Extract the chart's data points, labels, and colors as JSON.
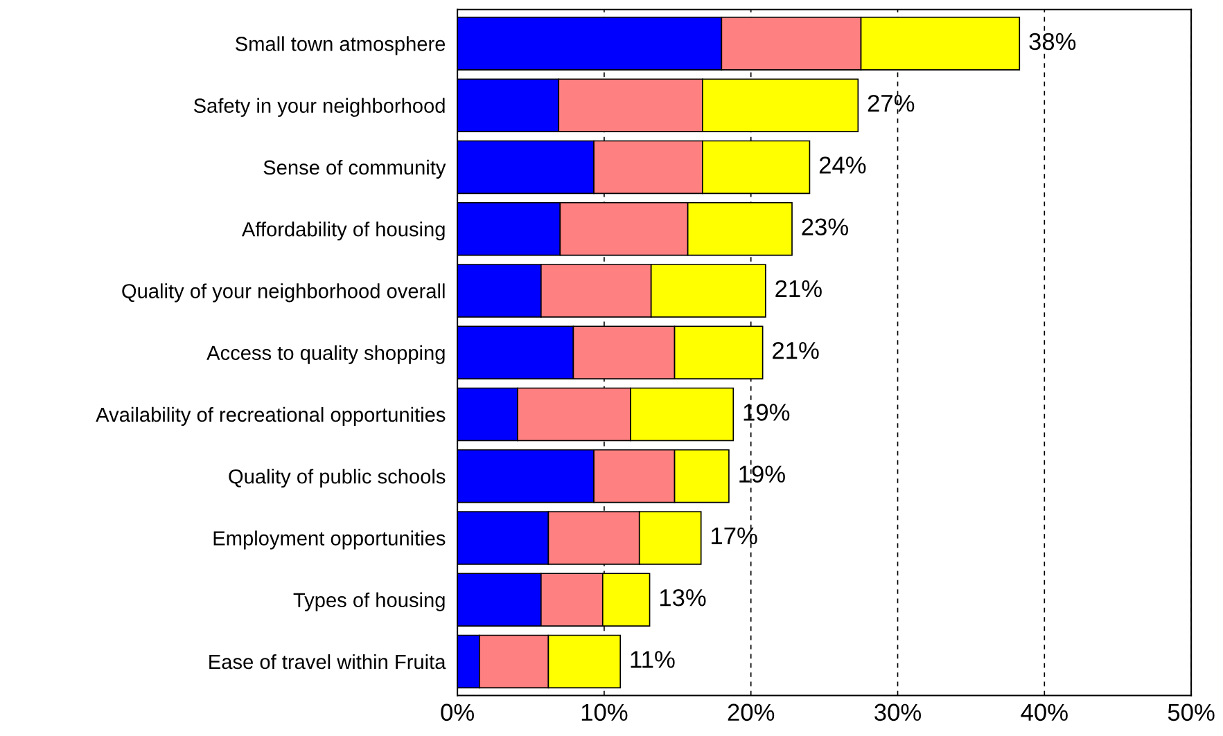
{
  "chart_data": {
    "type": "bar",
    "orientation": "horizontal",
    "stacked": true,
    "categories": [
      "Small town atmosphere",
      "Safety in your neighborhood",
      "Sense of community",
      "Affordability of housing",
      "Quality of your neighborhood overall",
      "Access to quality shopping",
      "Availability of recreational opportunities",
      "Quality of public schools",
      "Employment opportunities",
      "Types of housing",
      "Ease of travel within Fruita"
    ],
    "series": [
      {
        "color": "#0000ff",
        "values": [
          18.0,
          6.9,
          9.3,
          7.0,
          5.7,
          7.9,
          4.1,
          9.3,
          6.2,
          5.7,
          1.5
        ]
      },
      {
        "color": "#ff8080",
        "values": [
          9.5,
          9.8,
          7.4,
          8.7,
          7.5,
          6.9,
          7.7,
          5.5,
          6.2,
          4.2,
          4.7
        ]
      },
      {
        "color": "#ffff00",
        "values": [
          10.8,
          10.6,
          7.3,
          7.1,
          7.8,
          6.0,
          7.0,
          3.7,
          4.2,
          3.2,
          4.9
        ]
      }
    ],
    "totals": [
      "38%",
      "27%",
      "24%",
      "23%",
      "21%",
      "21%",
      "19%",
      "19%",
      "17%",
      "13%",
      "11%"
    ],
    "xlim": [
      0,
      50
    ],
    "xticks": [
      {
        "value": 0,
        "label": "0%"
      },
      {
        "value": 10,
        "label": "10%"
      },
      {
        "value": 20,
        "label": "20%"
      },
      {
        "value": 30,
        "label": "30%"
      },
      {
        "value": 40,
        "label": "40%"
      },
      {
        "value": 50,
        "label": "50%"
      }
    ],
    "grid": "x",
    "line_style": "dashed"
  }
}
